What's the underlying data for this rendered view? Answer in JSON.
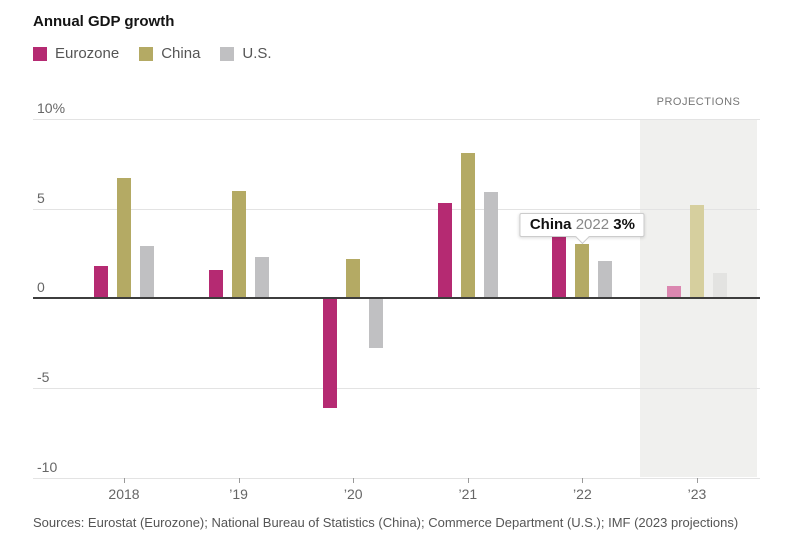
{
  "projections_label": "PROJECTIONS",
  "legend": [
    {
      "label": "Eurozone",
      "color": "#b52a72"
    },
    {
      "label": "China",
      "color": "#b4aa64"
    },
    {
      "label": "U.S.",
      "color": "#c0c0c2"
    }
  ],
  "tooltip": {
    "series": "China",
    "year": "2022",
    "value": "3%",
    "anchor_series_index": 1,
    "anchor_category_index": 4
  },
  "sources": "Sources: Eurostat (Eurozone); National Bureau of Statistics (China); Commerce Department (U.S.); IMF (2023 projections)",
  "chart_data": {
    "type": "bar",
    "title": "Annual GDP growth",
    "categories": [
      "2018",
      "’19",
      "’20",
      "’21",
      "’22",
      "’23"
    ],
    "series": [
      {
        "name": "Eurozone",
        "color": "#b52a72",
        "faded_color": "#db87b0",
        "values": [
          1.8,
          1.6,
          -6.1,
          5.3,
          3.5,
          0.7
        ]
      },
      {
        "name": "China",
        "color": "#b4aa64",
        "faded_color": "#d6cf9e",
        "values": [
          6.7,
          6.0,
          2.2,
          8.1,
          3.0,
          5.2
        ]
      },
      {
        "name": "U.S.",
        "color": "#c0c0c2",
        "faded_color": "#e3e3e1",
        "values": [
          2.9,
          2.3,
          -2.8,
          5.9,
          2.1,
          1.4
        ]
      }
    ],
    "projection_category_index": 5,
    "projection_band_color": "#f0f0ee",
    "y_ticks": [
      10,
      5,
      0,
      -5,
      -10
    ],
    "y_tick_labels": [
      "10%",
      "5",
      "0",
      "-5",
      "-10"
    ],
    "ylim": [
      -10,
      10
    ],
    "grid": true,
    "legend_position": "top-left"
  }
}
